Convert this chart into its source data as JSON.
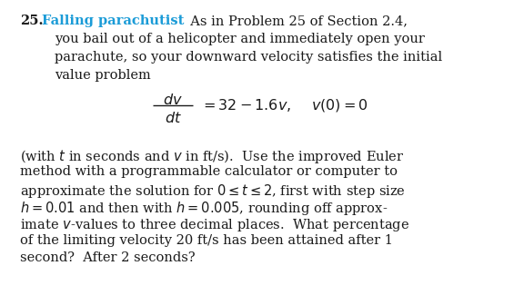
{
  "background_color": "#ffffff",
  "title_color": "#1a9bd7",
  "body_color": "#1a1a1a",
  "figsize": [
    5.76,
    3.36
  ],
  "dpi": 100,
  "fontsize": 10.5,
  "lines": {
    "header_num": "25.",
    "header_title": "Falling parachutist",
    "header_rest": "  As in Problem 25 of Section 2.4,",
    "line2": "you bail out of a helicopter and immediately open your",
    "line3": "parachute, so your downward velocity satisfies the initial",
    "line4": "value problem",
    "para2_l1": "(with $t$ in seconds and $v$ in ft/s).  Use the improved Euler",
    "para2_l2": "method with a programmable calculator or computer to",
    "para2_l3": "approximate the solution for $0 \\leq t \\leq 2$, first with step size",
    "para2_l4": "$h = 0.01$ and then with $h = 0.005$, rounding off approx-",
    "para2_l5": "imate $v$-values to three decimal places.  What percentage",
    "para2_l6": "of the limiting velocity 20 ft/s has been attained after 1",
    "para2_l7": "second?  After 2 seconds?"
  }
}
